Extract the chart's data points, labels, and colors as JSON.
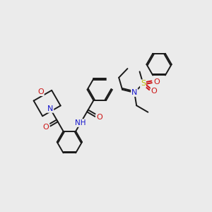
{
  "background_color": "#ebebeb",
  "bond_color": "#1a1a1a",
  "bond_width": 1.4,
  "atom_colors": {
    "N": "#1414cc",
    "O": "#cc1414",
    "S": "#bbbb00",
    "H": "#008080"
  },
  "figsize": [
    3.0,
    3.0
  ],
  "dpi": 100
}
